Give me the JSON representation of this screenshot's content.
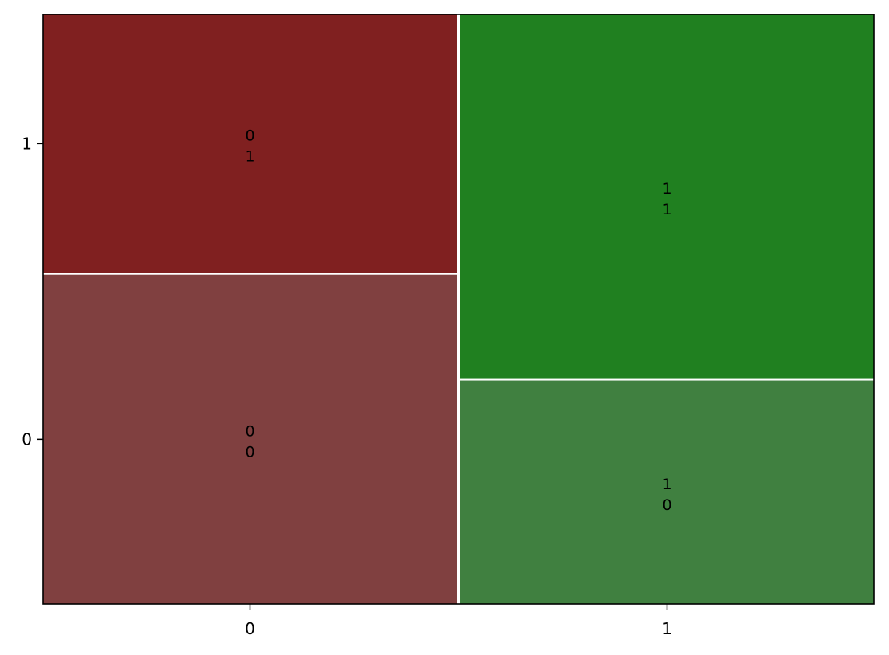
{
  "chart_data": {
    "type": "mosaic",
    "title": "",
    "xlabel": "",
    "ylabel": "",
    "x_categories": [
      "0",
      "1"
    ],
    "y_categories": [
      "0",
      "1"
    ],
    "x_proportions": [
      0.5,
      0.5
    ],
    "cells": [
      {
        "x": "0",
        "y": "0",
        "proportion": 0.56,
        "label_lines": [
          "0",
          "0"
        ],
        "color": "#804040"
      },
      {
        "x": "0",
        "y": "1",
        "proportion": 0.44,
        "label_lines": [
          "0",
          "1"
        ],
        "color": "#802020"
      },
      {
        "x": "1",
        "y": "0",
        "proportion": 0.38,
        "label_lines": [
          "1",
          "0"
        ],
        "color": "#408040"
      },
      {
        "x": "1",
        "y": "1",
        "proportion": 0.62,
        "label_lines": [
          "1",
          "1"
        ],
        "color": "#208020"
      }
    ],
    "x_tick_labels": [
      "0",
      "1"
    ],
    "y_tick_labels": [
      "0",
      "1"
    ],
    "border_color": "#000000",
    "gap_color": "#ffffff"
  }
}
